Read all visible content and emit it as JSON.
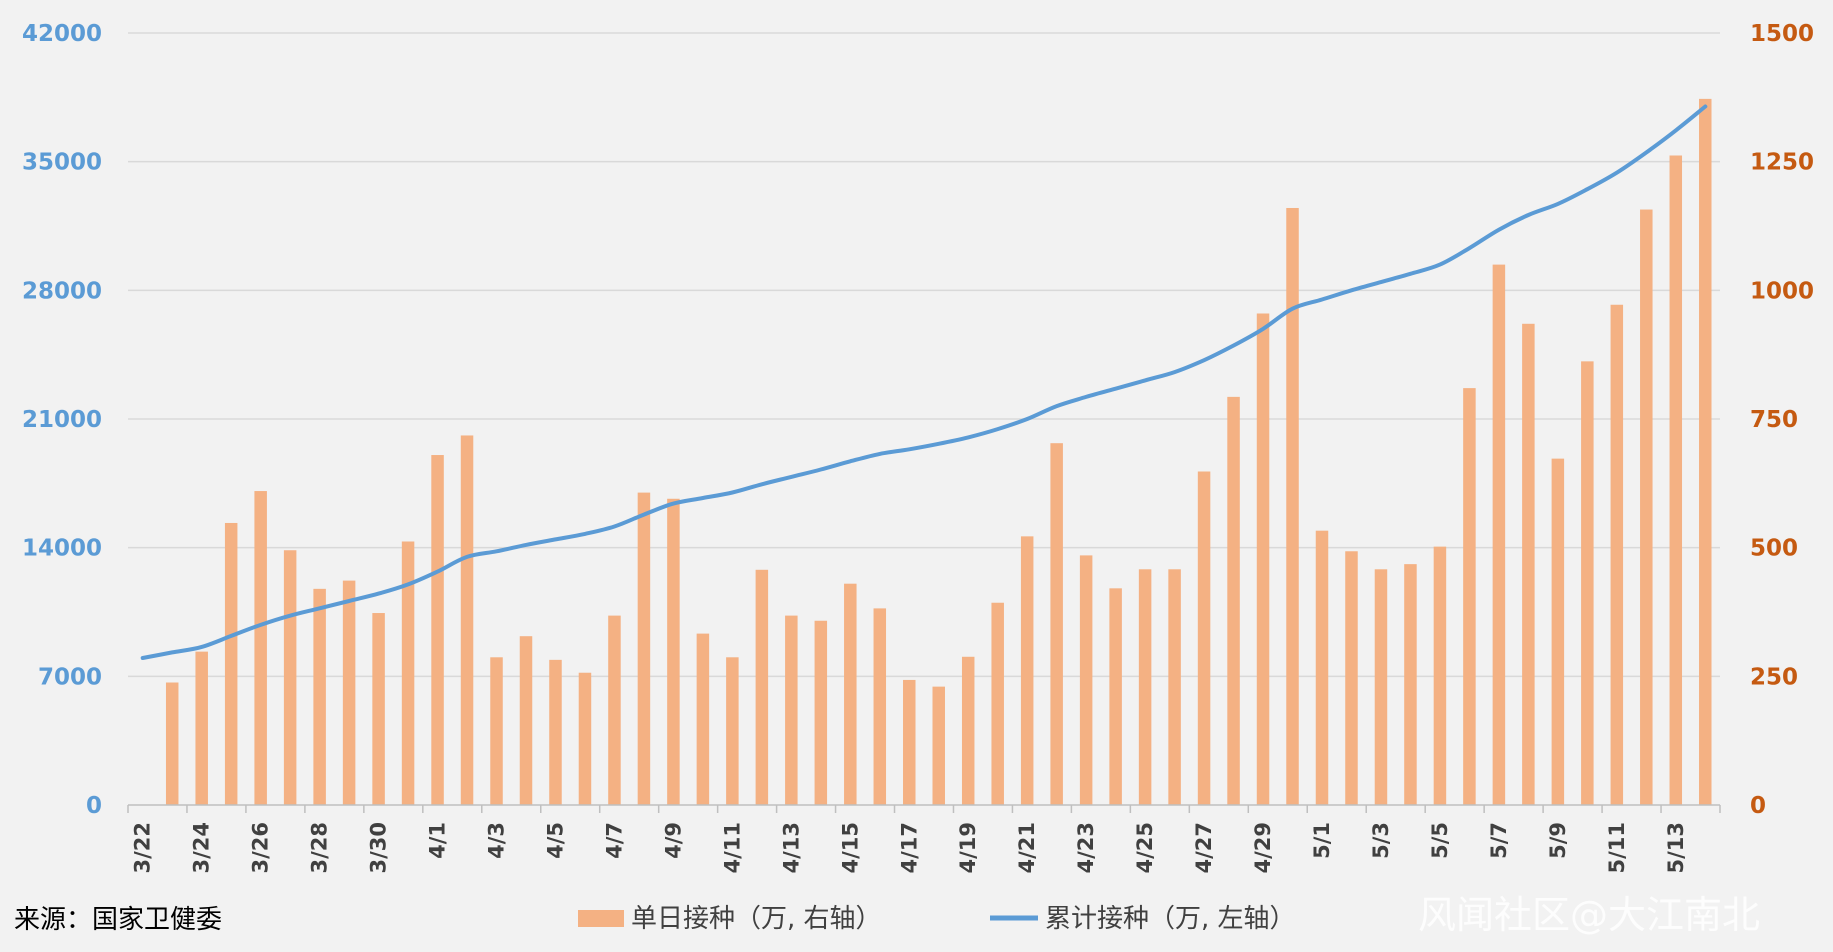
{
  "source_label": "来源：国家卫健委",
  "watermark": "风闻社区@大江南北",
  "colors": {
    "background": "#f2f2f2",
    "grid": "#d9d9d9",
    "bar": "#f4b183",
    "line": "#5b9bd5",
    "left_axis_text": "#5b9bd5",
    "right_axis_text": "#c55a11",
    "axis_line": "#bfbfbf"
  },
  "chart_data": {
    "type": "bar+line",
    "title": "",
    "x_tick_labels": [
      "3/22",
      "3/24",
      "3/26",
      "3/28",
      "3/30",
      "4/1",
      "4/3",
      "4/5",
      "4/7",
      "4/9",
      "4/11",
      "4/13",
      "4/15",
      "4/17",
      "4/19",
      "4/21",
      "4/23",
      "4/25",
      "4/27",
      "4/29",
      "5/1",
      "5/3",
      "5/5",
      "5/7",
      "5/9",
      "5/11",
      "5/13"
    ],
    "y_left": {
      "ticks": [
        "0",
        "7000",
        "14000",
        "21000",
        "28000",
        "35000",
        "42000"
      ],
      "range": [
        0,
        42000
      ]
    },
    "y_right": {
      "ticks": [
        "0",
        "250",
        "500",
        "750",
        "1000",
        "1250",
        "1500"
      ],
      "range": [
        0,
        1500
      ]
    },
    "grid": true,
    "legend_position": "bottom",
    "categories": [
      "3/22",
      "3/23",
      "3/24",
      "3/25",
      "3/26",
      "3/27",
      "3/28",
      "3/29",
      "3/30",
      "3/31",
      "4/1",
      "4/2",
      "4/3",
      "4/4",
      "4/5",
      "4/6",
      "4/7",
      "4/8",
      "4/9",
      "4/10",
      "4/11",
      "4/12",
      "4/13",
      "4/14",
      "4/15",
      "4/16",
      "4/17",
      "4/18",
      "4/19",
      "4/20",
      "4/21",
      "4/22",
      "4/23",
      "4/24",
      "4/25",
      "4/26",
      "4/27",
      "4/28",
      "4/29",
      "4/30",
      "5/1",
      "5/2",
      "5/3",
      "5/4",
      "5/5",
      "5/6",
      "5/7",
      "5/8",
      "5/9",
      "5/10",
      "5/11",
      "5/12",
      "5/13",
      "5/14"
    ],
    "series": [
      {
        "name": "单日接种（万, 右轴）",
        "type": "bar",
        "axis": "right",
        "values": [
          null,
          238,
          298,
          548,
          610,
          495,
          420,
          436,
          373,
          512,
          680,
          718,
          287,
          328,
          282,
          257,
          368,
          607,
          595,
          333,
          287,
          457,
          368,
          358,
          430,
          382,
          243,
          230,
          288,
          393,
          522,
          703,
          485,
          421,
          458,
          458,
          648,
          793,
          955,
          1160,
          533,
          493,
          458,
          468,
          502,
          810,
          1050,
          935,
          673,
          862,
          972,
          1157,
          1262,
          1372
        ]
      },
      {
        "name": "累计接种（万, 左轴）",
        "type": "line",
        "axis": "left",
        "values": [
          8000,
          8300,
          8600,
          9200,
          9800,
          10300,
          10700,
          11100,
          11500,
          12000,
          12700,
          13500,
          13800,
          14150,
          14450,
          14750,
          15150,
          15800,
          16400,
          16700,
          17000,
          17450,
          17850,
          18250,
          18700,
          19100,
          19350,
          19650,
          20000,
          20450,
          21000,
          21700,
          22200,
          22650,
          23100,
          23550,
          24200,
          25000,
          25900,
          27000,
          27500,
          28000,
          28450,
          28900,
          29400,
          30300,
          31300,
          32100,
          32700,
          33500,
          34400,
          35500,
          36700,
          38000
        ]
      }
    ]
  }
}
